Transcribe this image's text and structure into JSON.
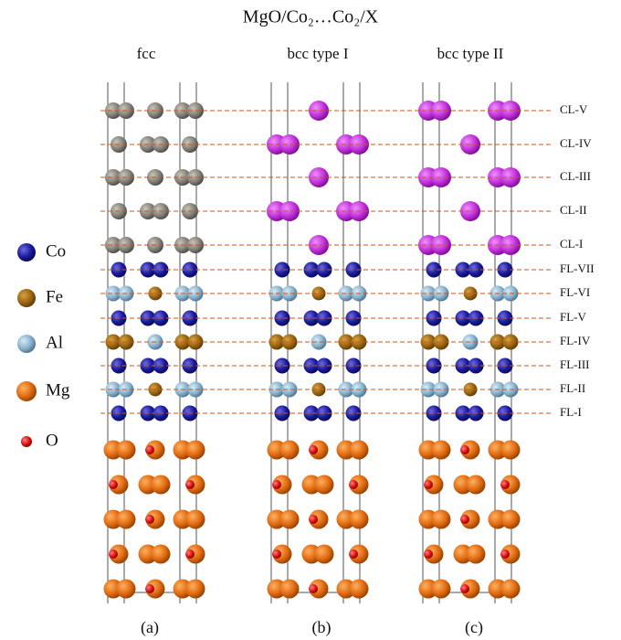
{
  "title": "MgO/Co₂…Co₂/X",
  "columns": [
    "fcc",
    "bcc type I",
    "bcc type II"
  ],
  "layers": [
    "CL-V",
    "CL-IV",
    "CL-III",
    "CL-II",
    "CL-I",
    "FL-VII",
    "FL-VI",
    "FL-V",
    "FL-IV",
    "FL-III",
    "FL-II",
    "FL-I"
  ],
  "legend": [
    "Co",
    "Fe",
    "Al",
    "Mg",
    "O"
  ],
  "panels": [
    "(a)",
    "(b)",
    "(c)"
  ]
}
